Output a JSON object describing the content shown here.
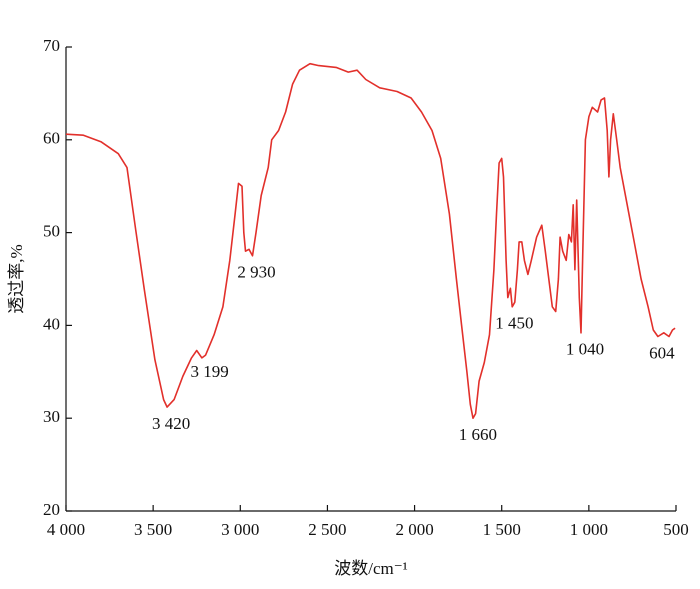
{
  "chart_data": {
    "type": "line",
    "x_label": "波数/cm⁻¹",
    "y_label": "透过率,%",
    "xlim": [
      4000,
      500
    ],
    "ylim": [
      20,
      70
    ],
    "xticks": [
      {
        "value": 4000,
        "label": "4 000"
      },
      {
        "value": 3500,
        "label": "3 500"
      },
      {
        "value": 3000,
        "label": "3 000"
      },
      {
        "value": 2500,
        "label": "2 500"
      },
      {
        "value": 2000,
        "label": "2 000"
      },
      {
        "value": 1500,
        "label": "1 500"
      },
      {
        "value": 1000,
        "label": "1 000"
      },
      500
    ],
    "yticks": [
      20,
      30,
      40,
      50,
      60,
      70
    ],
    "series": [
      {
        "color": "#e2302b",
        "x": [
          4000,
          3900,
          3800,
          3700,
          3650,
          3600,
          3550,
          3490,
          3440,
          3420,
          3380,
          3330,
          3280,
          3250,
          3220,
          3199,
          3150,
          3100,
          3060,
          3030,
          3010,
          2990,
          2980,
          2970,
          2950,
          2930,
          2910,
          2880,
          2840,
          2820,
          2780,
          2740,
          2700,
          2660,
          2600,
          2550,
          2450,
          2380,
          2330,
          2280,
          2200,
          2100,
          2020,
          1960,
          1900,
          1850,
          1800,
          1760,
          1730,
          1700,
          1680,
          1665,
          1650,
          1630,
          1600,
          1570,
          1545,
          1530,
          1515,
          1500,
          1490,
          1475,
          1465,
          1450,
          1440,
          1425,
          1410,
          1400,
          1385,
          1370,
          1350,
          1330,
          1300,
          1270,
          1250,
          1230,
          1210,
          1190,
          1175,
          1165,
          1150,
          1130,
          1115,
          1100,
          1090,
          1080,
          1070,
          1055,
          1045,
          1035,
          1020,
          1000,
          980,
          950,
          930,
          910,
          895,
          885,
          875,
          860,
          840,
          820,
          780,
          740,
          700,
          660,
          630,
          604,
          570,
          540,
          520,
          505
        ],
        "values": [
          60.6,
          60.5,
          59.8,
          58.5,
          57,
          50.3,
          43.8,
          36.3,
          32,
          31.2,
          32,
          34.5,
          36.5,
          37.3,
          36.5,
          36.8,
          39,
          42,
          47,
          52,
          55.3,
          55,
          50,
          48,
          48.2,
          47.5,
          50,
          54,
          57,
          60,
          61,
          63,
          66,
          67.5,
          68.2,
          68,
          67.8,
          67.3,
          67.5,
          66.5,
          65.6,
          65.2,
          64.5,
          63,
          61,
          58,
          52,
          45,
          40,
          35,
          31.5,
          30,
          30.5,
          34,
          36,
          39,
          46,
          52,
          57.5,
          58,
          56,
          47,
          43,
          44,
          42,
          42.5,
          46,
          49,
          49,
          47,
          45.5,
          47,
          49.5,
          50.8,
          48,
          45,
          42,
          41.5,
          45,
          49.5,
          48,
          47,
          49.8,
          49,
          53,
          46,
          53.5,
          43,
          39.2,
          48,
          60,
          62.5,
          63.5,
          63,
          64.3,
          64.5,
          61,
          56,
          60,
          62.8,
          60,
          57,
          53,
          49,
          45,
          42,
          39.5,
          38.8,
          39.2,
          38.8,
          39.5,
          39.7
        ]
      }
    ],
    "annotations": [
      {
        "text": "3 420",
        "x": 3420,
        "y": 31.2
      },
      {
        "text": "3 199",
        "x": 3199,
        "y": 36.8
      },
      {
        "text": "2 930",
        "x": 2930,
        "y": 47.5
      },
      {
        "text": "1 660",
        "x": 1660,
        "y": 30
      },
      {
        "text": "1 450",
        "x": 1450,
        "y": 42
      },
      {
        "text": "1 040",
        "x": 1045,
        "y": 39.2
      },
      {
        "text": "604",
        "x": 604,
        "y": 38.8
      }
    ]
  }
}
